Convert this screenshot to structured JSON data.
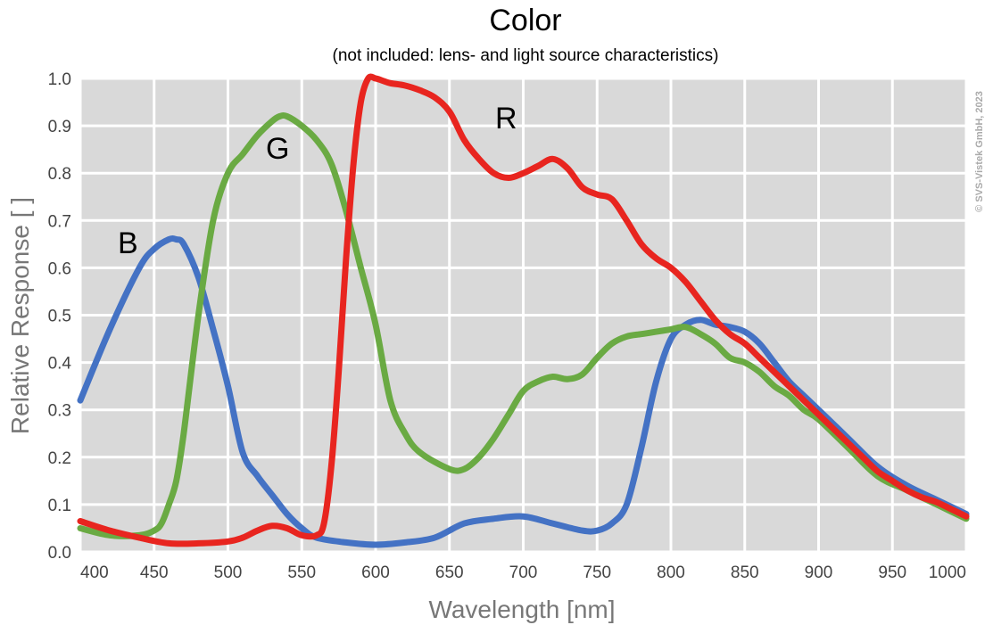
{
  "chart_data": {
    "type": "line",
    "title": "Color",
    "subtitle": "(not included: lens- and light source characteristics)",
    "xlabel": "Wavelength [nm]",
    "ylabel": "Relative Response [ ]",
    "xlim": [
      400,
      1000
    ],
    "ylim": [
      0,
      1.0
    ],
    "xticks": [
      "400",
      "450",
      "500",
      "550",
      "600",
      "650",
      "700",
      "750",
      "800",
      "850",
      "900",
      "950",
      "1000"
    ],
    "yticks": [
      "0.0",
      "0.1",
      "0.2",
      "0.3",
      "0.4",
      "0.5",
      "0.6",
      "0.7",
      "0.8",
      "0.9",
      "1.0"
    ],
    "grid": true,
    "copyright": "© SVS-Vistek GmbH, 2023",
    "series": [
      {
        "name": "R",
        "color": "#e8251f",
        "x": [
          400,
          420,
          440,
          460,
          480,
          500,
          510,
          520,
          530,
          540,
          550,
          560,
          565,
          570,
          575,
          580,
          585,
          590,
          595,
          600,
          605,
          610,
          620,
          630,
          640,
          650,
          660,
          670,
          680,
          690,
          700,
          710,
          720,
          730,
          740,
          750,
          760,
          770,
          780,
          790,
          800,
          810,
          820,
          830,
          840,
          850,
          860,
          870,
          880,
          890,
          900,
          910,
          920,
          930,
          940,
          950,
          960,
          970,
          980,
          990,
          1000
        ],
        "y": [
          0.065,
          0.045,
          0.03,
          0.018,
          0.018,
          0.022,
          0.03,
          0.045,
          0.055,
          0.05,
          0.035,
          0.035,
          0.06,
          0.18,
          0.38,
          0.62,
          0.82,
          0.95,
          1.0,
          1.0,
          0.995,
          0.99,
          0.985,
          0.975,
          0.96,
          0.93,
          0.87,
          0.83,
          0.8,
          0.79,
          0.8,
          0.815,
          0.83,
          0.81,
          0.77,
          0.755,
          0.745,
          0.7,
          0.65,
          0.62,
          0.6,
          0.57,
          0.53,
          0.49,
          0.46,
          0.44,
          0.41,
          0.38,
          0.35,
          0.32,
          0.29,
          0.26,
          0.23,
          0.2,
          0.17,
          0.15,
          0.13,
          0.115,
          0.105,
          0.09,
          0.075
        ]
      },
      {
        "name": "G",
        "color": "#6aaa43",
        "x": [
          400,
          420,
          440,
          450,
          455,
          460,
          465,
          470,
          480,
          490,
          500,
          510,
          520,
          530,
          535,
          540,
          550,
          560,
          570,
          580,
          590,
          600,
          610,
          620,
          630,
          650,
          660,
          670,
          680,
          690,
          700,
          710,
          720,
          730,
          740,
          750,
          760,
          770,
          780,
          790,
          800,
          810,
          820,
          830,
          840,
          850,
          860,
          870,
          880,
          890,
          900,
          920,
          940,
          960,
          980,
          1000
        ],
        "y": [
          0.05,
          0.035,
          0.035,
          0.045,
          0.06,
          0.1,
          0.15,
          0.25,
          0.5,
          0.7,
          0.8,
          0.84,
          0.88,
          0.91,
          0.92,
          0.92,
          0.9,
          0.87,
          0.82,
          0.72,
          0.6,
          0.48,
          0.32,
          0.25,
          0.21,
          0.175,
          0.175,
          0.2,
          0.24,
          0.29,
          0.34,
          0.36,
          0.37,
          0.365,
          0.375,
          0.41,
          0.44,
          0.455,
          0.46,
          0.465,
          0.47,
          0.475,
          0.46,
          0.44,
          0.41,
          0.4,
          0.38,
          0.35,
          0.33,
          0.3,
          0.28,
          0.22,
          0.16,
          0.13,
          0.1,
          0.07
        ]
      },
      {
        "name": "B",
        "color": "#4472c4",
        "x": [
          400,
          420,
          440,
          450,
          460,
          465,
          470,
          480,
          490,
          500,
          510,
          520,
          530,
          540,
          550,
          560,
          580,
          600,
          620,
          640,
          660,
          680,
          700,
          720,
          740,
          750,
          760,
          770,
          780,
          790,
          800,
          810,
          820,
          830,
          840,
          850,
          860,
          870,
          880,
          890,
          900,
          920,
          940,
          960,
          980,
          1000
        ],
        "y": [
          0.32,
          0.47,
          0.6,
          0.64,
          0.66,
          0.66,
          0.65,
          0.58,
          0.47,
          0.35,
          0.21,
          0.16,
          0.12,
          0.08,
          0.05,
          0.03,
          0.02,
          0.015,
          0.02,
          0.03,
          0.06,
          0.07,
          0.075,
          0.06,
          0.045,
          0.045,
          0.06,
          0.1,
          0.22,
          0.36,
          0.45,
          0.48,
          0.49,
          0.48,
          0.475,
          0.465,
          0.44,
          0.4,
          0.36,
          0.33,
          0.3,
          0.24,
          0.18,
          0.14,
          0.11,
          0.08
        ]
      }
    ]
  }
}
